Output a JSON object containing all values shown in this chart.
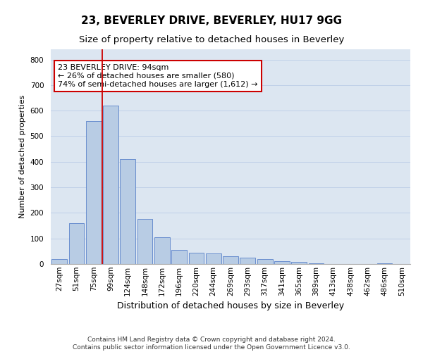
{
  "title1": "23, BEVERLEY DRIVE, BEVERLEY, HU17 9GG",
  "title2": "Size of property relative to detached houses in Beverley",
  "xlabel": "Distribution of detached houses by size in Beverley",
  "ylabel": "Number of detached properties",
  "categories": [
    "27sqm",
    "51sqm",
    "75sqm",
    "99sqm",
    "124sqm",
    "148sqm",
    "172sqm",
    "196sqm",
    "220sqm",
    "244sqm",
    "269sqm",
    "293sqm",
    "317sqm",
    "341sqm",
    "365sqm",
    "389sqm",
    "413sqm",
    "438sqm",
    "462sqm",
    "486sqm",
    "510sqm"
  ],
  "values": [
    20,
    160,
    560,
    620,
    410,
    175,
    105,
    55,
    45,
    40,
    30,
    25,
    20,
    10,
    8,
    3,
    0,
    0,
    0,
    2,
    0
  ],
  "bar_color": "#b8cce4",
  "bar_edge_color": "#4472c4",
  "grid_color": "#c0d0e8",
  "background_color": "#dce6f1",
  "vline_color": "#cc0000",
  "vline_x": 3.0,
  "annotation_text": "23 BEVERLEY DRIVE: 94sqm\n← 26% of detached houses are smaller (580)\n74% of semi-detached houses are larger (1,612) →",
  "annotation_box_color": "#cc0000",
  "ylim": [
    0,
    840
  ],
  "yticks": [
    0,
    100,
    200,
    300,
    400,
    500,
    600,
    700,
    800
  ],
  "footer": "Contains HM Land Registry data © Crown copyright and database right 2024.\nContains public sector information licensed under the Open Government Licence v3.0.",
  "title1_fontsize": 11,
  "title2_fontsize": 9.5,
  "xlabel_fontsize": 9,
  "ylabel_fontsize": 8,
  "tick_fontsize": 7.5,
  "annotation_fontsize": 8,
  "footer_fontsize": 6.5
}
